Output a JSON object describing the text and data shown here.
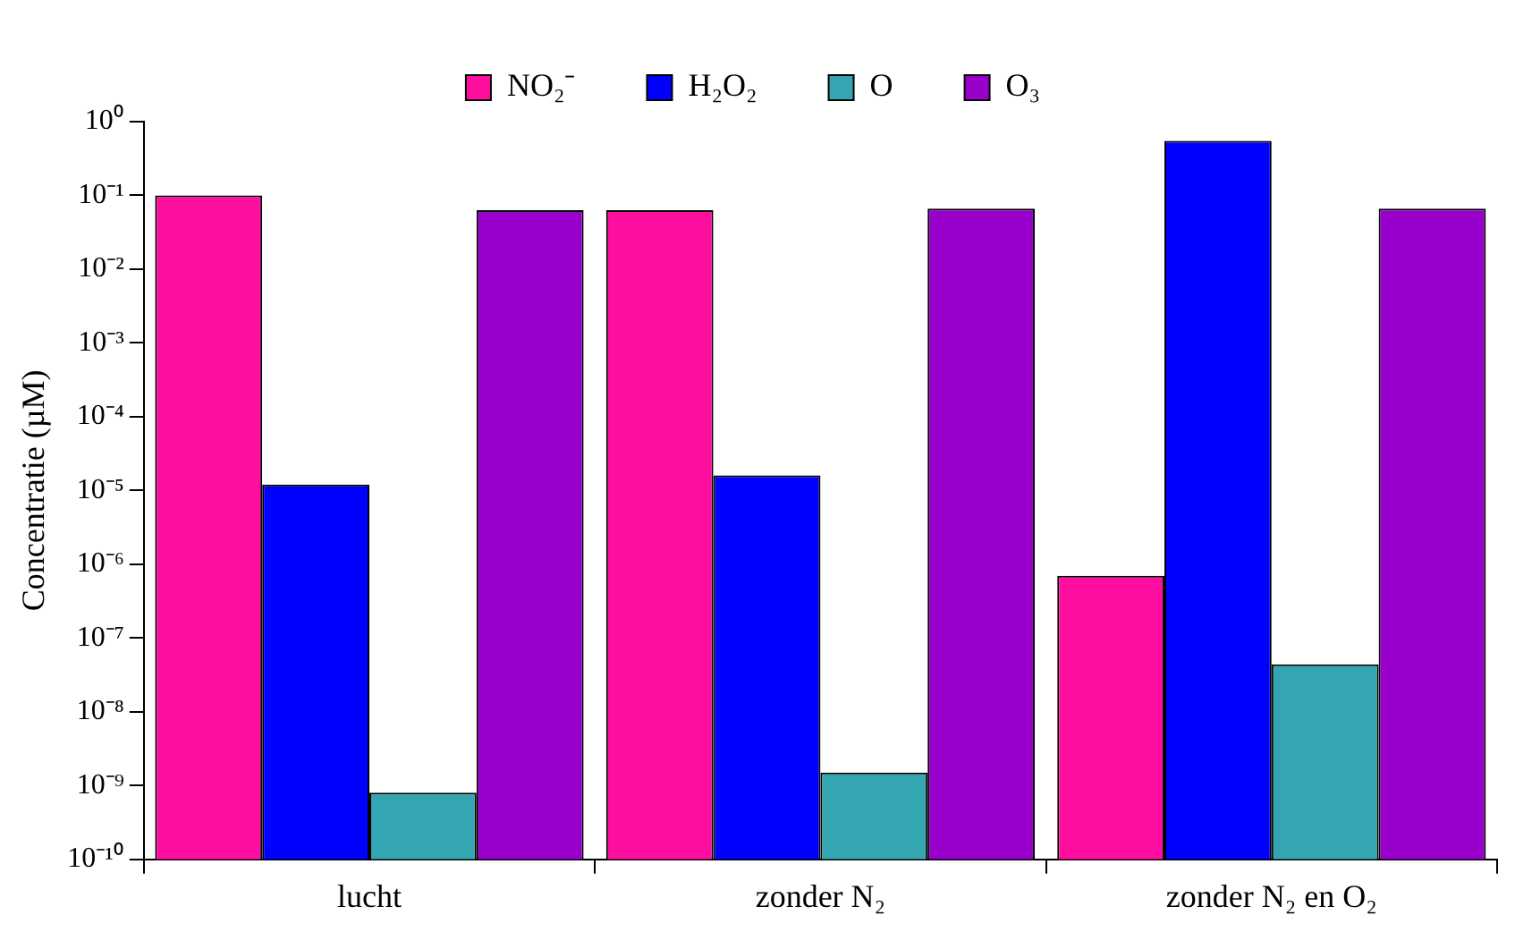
{
  "chart_data": {
    "type": "bar",
    "ylabel": "Concentratie (µM)",
    "categories": [
      "lucht",
      "zonder N₂",
      "zonder N₂ en O₂"
    ],
    "series": [
      {
        "name": "NO₂⁻",
        "color": "#ff0fa0",
        "values": [
          0.1,
          0.063,
          7e-07
        ]
      },
      {
        "name": "H₂O₂",
        "color": "#0000ff",
        "values": [
          1.2e-05,
          1.6e-05,
          0.55
        ]
      },
      {
        "name": "O",
        "color": "#33a6b2",
        "values": [
          8e-10,
          1.5e-09,
          4.4e-08
        ]
      },
      {
        "name": "O₃",
        "color": "#9900cc",
        "values": [
          0.063,
          0.066,
          0.066
        ]
      }
    ],
    "log": "y",
    "ylim": [
      1e-10,
      1
    ],
    "yticks": [
      {
        "value": 1e-10,
        "label": "10⁻¹⁰"
      },
      {
        "value": 1e-09,
        "label": "10⁻⁹"
      },
      {
        "value": 1e-08,
        "label": "10⁻⁸"
      },
      {
        "value": 1e-07,
        "label": "10⁻⁷"
      },
      {
        "value": 1e-06,
        "label": "10⁻⁶"
      },
      {
        "value": 1e-05,
        "label": "10⁻⁵"
      },
      {
        "value": 0.0001,
        "label": "10⁻⁴"
      },
      {
        "value": 0.001,
        "label": "10⁻³"
      },
      {
        "value": 0.01,
        "label": "10⁻²"
      },
      {
        "value": 0.1,
        "label": "10⁻¹"
      },
      {
        "value": 1,
        "label": "10⁰"
      }
    ],
    "grid": false,
    "legend": "top"
  }
}
